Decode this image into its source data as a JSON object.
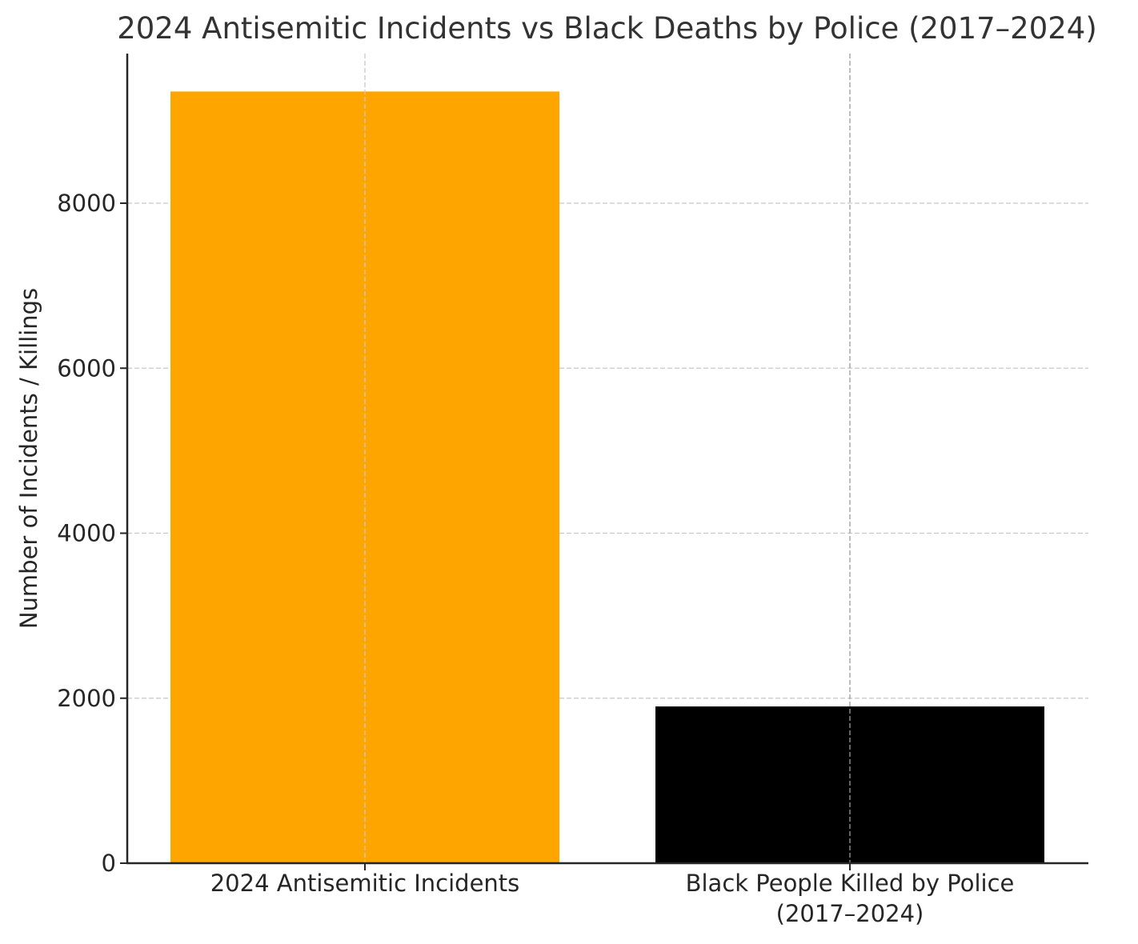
{
  "chart_data": {
    "type": "bar",
    "title": "2024 Antisemitic Incidents vs Black Deaths by Police (2017–2024)",
    "xlabel": "",
    "ylabel": "Number of Incidents / Killings",
    "categories": [
      "2024 Antisemitic Incidents",
      "Black People Killed by Police (2017–2024)"
    ],
    "category_lines": [
      [
        "2024 Antisemitic Incidents"
      ],
      [
        "Black People Killed by Police",
        "(2017–2024)"
      ]
    ],
    "values": [
      9354,
      1900
    ],
    "colors": [
      "#ffa500",
      "#000000"
    ],
    "ylim": [
      0,
      9800
    ],
    "yticks": [
      0,
      2000,
      4000,
      6000,
      8000
    ],
    "grid": true,
    "legend": null
  }
}
